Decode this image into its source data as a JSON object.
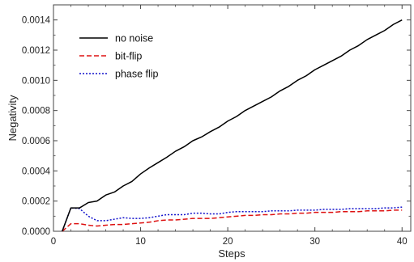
{
  "chart_data": {
    "type": "line",
    "title": "",
    "xlabel": "Steps",
    "ylabel": "Negativity",
    "xlim": [
      0,
      41
    ],
    "ylim": [
      0,
      0.0015
    ],
    "xticks": [
      0,
      10,
      20,
      30,
      40
    ],
    "xtick_labels": [
      "0",
      "10",
      "20",
      "30",
      "40"
    ],
    "yticks": [
      0,
      0.0002,
      0.0004,
      0.0006,
      0.0008,
      0.001,
      0.0012,
      0.0014
    ],
    "ytick_labels": [
      "0.0000",
      "0.0002",
      "0.0004",
      "0.0006",
      "0.0008",
      "0.0010",
      "0.0012",
      "0.0014"
    ],
    "grid": false,
    "legend_position": "top-left",
    "x": [
      1,
      2,
      3,
      4,
      5,
      6,
      7,
      8,
      9,
      10,
      11,
      12,
      13,
      14,
      15,
      16,
      17,
      18,
      19,
      20,
      21,
      22,
      23,
      24,
      25,
      26,
      27,
      28,
      29,
      30,
      31,
      32,
      33,
      34,
      35,
      36,
      37,
      38,
      39,
      40
    ],
    "series": [
      {
        "name": "no noise",
        "color": "#000000",
        "style": "solid",
        "values": [
          0.0,
          0.000155,
          0.000155,
          0.00019,
          0.0002,
          0.00024,
          0.00026,
          0.0003,
          0.00033,
          0.00038,
          0.00042,
          0.000455,
          0.00049,
          0.00053,
          0.00056,
          0.0006,
          0.000625,
          0.00066,
          0.00069,
          0.00073,
          0.00076,
          0.0008,
          0.00083,
          0.00086,
          0.00089,
          0.00093,
          0.00096,
          0.001,
          0.00103,
          0.00107,
          0.0011,
          0.00113,
          0.00116,
          0.0012,
          0.00123,
          0.00127,
          0.0013,
          0.00133,
          0.00137,
          0.0014
        ]
      },
      {
        "name": "bit-flip",
        "color": "#dd1111",
        "style": "dashed",
        "values": [
          0.0,
          5e-05,
          5e-05,
          4e-05,
          3.5e-05,
          4e-05,
          4.5e-05,
          4.5e-05,
          5e-05,
          5.5e-05,
          6e-05,
          7e-05,
          7.5e-05,
          7.5e-05,
          8e-05,
          8.5e-05,
          8.5e-05,
          8.5e-05,
          9e-05,
          9.5e-05,
          0.0001,
          0.000105,
          0.000105,
          0.00011,
          0.00011,
          0.000115,
          0.000115,
          0.00012,
          0.00012,
          0.000125,
          0.000125,
          0.000125,
          0.00013,
          0.00013,
          0.00013,
          0.000135,
          0.000135,
          0.000135,
          0.00014,
          0.00014
        ]
      },
      {
        "name": "phase flip",
        "color": "#1111cc",
        "style": "dotted",
        "values": [
          0.0,
          0.000155,
          0.00015,
          0.0001,
          7e-05,
          7e-05,
          8e-05,
          9e-05,
          8.5e-05,
          8.5e-05,
          9e-05,
          0.0001,
          0.00011,
          0.00011,
          0.00011,
          0.00012,
          0.00012,
          0.000115,
          0.000115,
          0.000125,
          0.00013,
          0.00013,
          0.00013,
          0.00013,
          0.000135,
          0.000135,
          0.000135,
          0.00014,
          0.00014,
          0.00014,
          0.000145,
          0.000145,
          0.000145,
          0.00015,
          0.00015,
          0.00015,
          0.00015,
          0.000155,
          0.000155,
          0.00016
        ]
      }
    ]
  }
}
